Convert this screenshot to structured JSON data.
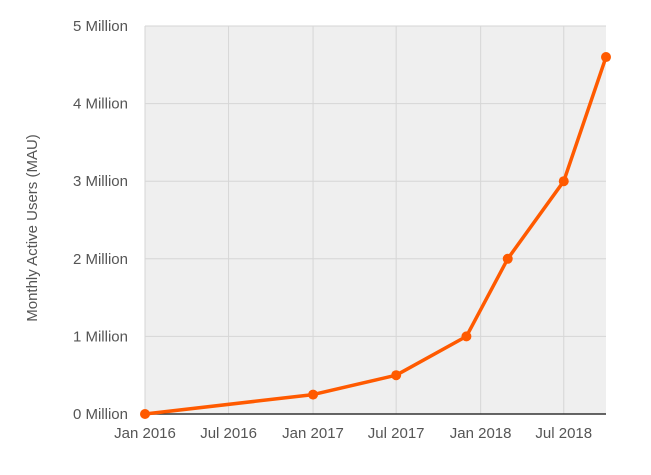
{
  "chart_data": {
    "type": "line",
    "title": "",
    "xlabel": "",
    "ylabel": "Monthly Active Users (MAU)",
    "x_axis": {
      "type": "date",
      "range": [
        "2016-01-01",
        "2018-10-01"
      ],
      "ticks": [
        {
          "date": "2016-01-01",
          "label": "Jan 2016"
        },
        {
          "date": "2016-07-01",
          "label": "Jul 2016"
        },
        {
          "date": "2017-01-01",
          "label": "Jan 2017"
        },
        {
          "date": "2017-07-01",
          "label": "Jul 2017"
        },
        {
          "date": "2018-01-01",
          "label": "Jan 2018"
        },
        {
          "date": "2018-07-01",
          "label": "Jul 2018"
        }
      ]
    },
    "y_axis": {
      "range": [
        0,
        5000000
      ],
      "ticks": [
        {
          "value": 0,
          "label": "0 Million"
        },
        {
          "value": 1000000,
          "label": "1 Million"
        },
        {
          "value": 2000000,
          "label": "2 Million"
        },
        {
          "value": 3000000,
          "label": "3 Million"
        },
        {
          "value": 4000000,
          "label": "4 Million"
        },
        {
          "value": 5000000,
          "label": "5 Million"
        }
      ]
    },
    "grid": true,
    "legend": "none",
    "series": [
      {
        "color": "#ff5a00",
        "points": [
          {
            "x": "2016-01-01",
            "y": 0
          },
          {
            "x": "2017-01-01",
            "y": 250000
          },
          {
            "x": "2017-07-01",
            "y": 500000
          },
          {
            "x": "2017-12-01",
            "y": 1000000
          },
          {
            "x": "2018-03-01",
            "y": 2000000
          },
          {
            "x": "2018-07-01",
            "y": 3000000
          },
          {
            "x": "2018-10-01",
            "y": 4600000
          }
        ]
      }
    ],
    "colors": {
      "plot_background": "#efefef",
      "gridline": "#d6d6d6",
      "axis_line": "#333333",
      "tick_text": "#555555"
    }
  }
}
